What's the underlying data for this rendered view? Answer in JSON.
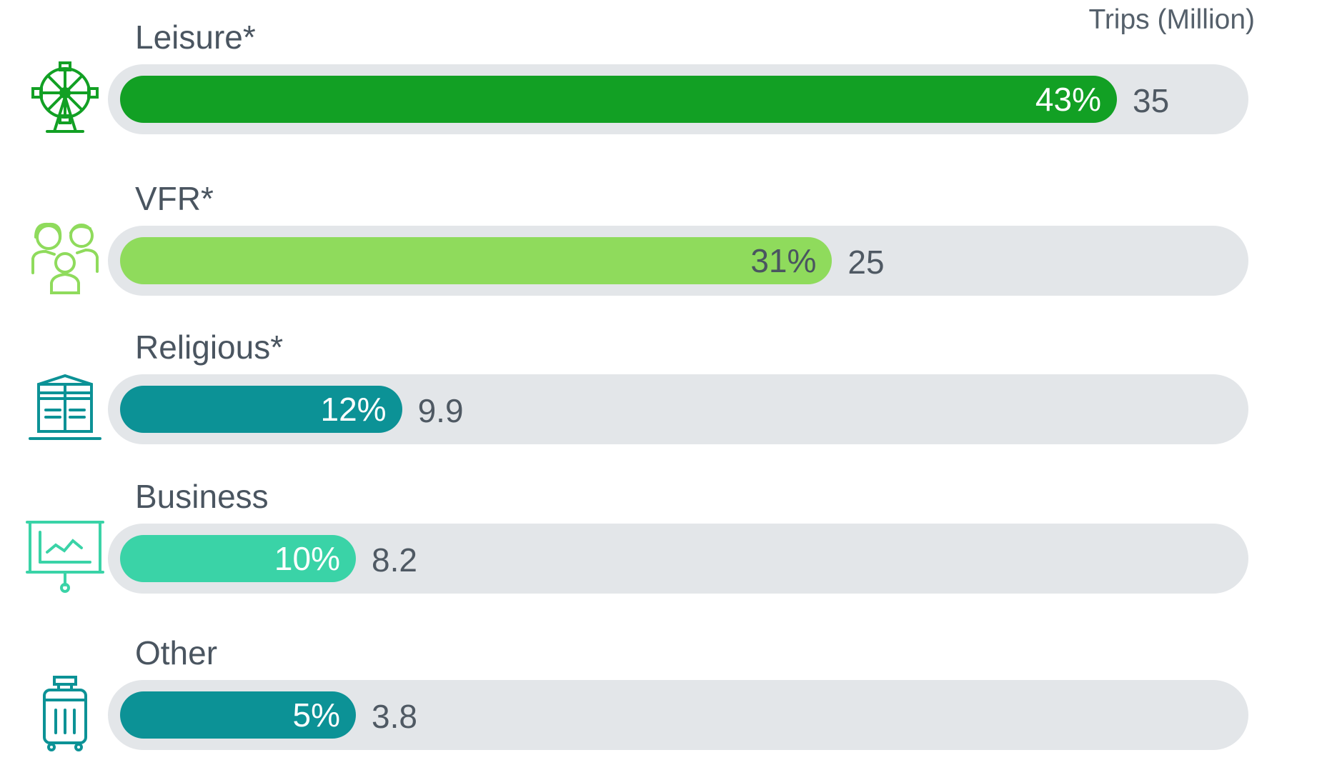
{
  "chart_data": {
    "type": "bar",
    "orientation": "horizontal",
    "unit_label": "Trips (Million)",
    "categories": [
      "Leisure*",
      "VFR*",
      "Religious*",
      "Business",
      "Other"
    ],
    "series": [
      {
        "values": [
          35,
          25,
          9.9,
          8.2,
          3.8
        ]
      }
    ],
    "value_labels": [
      "35",
      "25",
      "9.9",
      "8.2",
      "3.8"
    ],
    "shares": [
      0.43,
      0.31,
      0.12,
      0.1,
      0.05
    ],
    "share_labels": [
      "43%",
      "31%",
      "12%",
      "10%",
      "5%"
    ],
    "colors": [
      "#12a024",
      "#8fdb5c",
      "#0c9296",
      "#3ad3a7",
      "#0c9296"
    ],
    "share_text_colors": [
      "#ffffff",
      "#4a5560",
      "#ffffff",
      "#ffffff",
      "#ffffff"
    ],
    "icons": [
      "ferris-wheel-icon",
      "family-icon",
      "kaaba-icon",
      "presentation-board-icon",
      "suitcase-icon"
    ],
    "xlim": [
      0,
      35
    ]
  }
}
